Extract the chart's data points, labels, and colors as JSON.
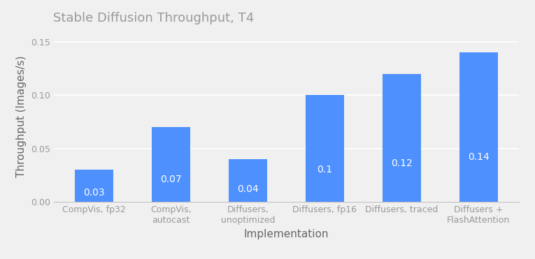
{
  "title": "Stable Diffusion Throughput, T4",
  "xlabel": "Implementation",
  "ylabel": "Throughput (Images/s)",
  "categories": [
    "CompVis, fp32",
    "CompVis,\nautocast",
    "Diffusers,\nunoptimized",
    "Diffusers, fp16",
    "Diffusers, traced",
    "Diffusers +\nFlashAttention"
  ],
  "values": [
    0.03,
    0.07,
    0.04,
    0.1,
    0.12,
    0.14
  ],
  "bar_color": "#4d90fe",
  "label_color": "#ffffff",
  "title_color": "#999999",
  "axis_label_color": "#666666",
  "tick_color": "#999999",
  "background_color": "#f0f0f0",
  "ylim": [
    0,
    0.16
  ],
  "yticks": [
    0.0,
    0.05,
    0.1,
    0.15
  ],
  "title_fontsize": 13,
  "axis_label_fontsize": 11,
  "tick_fontsize": 9,
  "bar_label_fontsize": 10,
  "grid_color": "#ffffff",
  "bar_width": 0.5
}
